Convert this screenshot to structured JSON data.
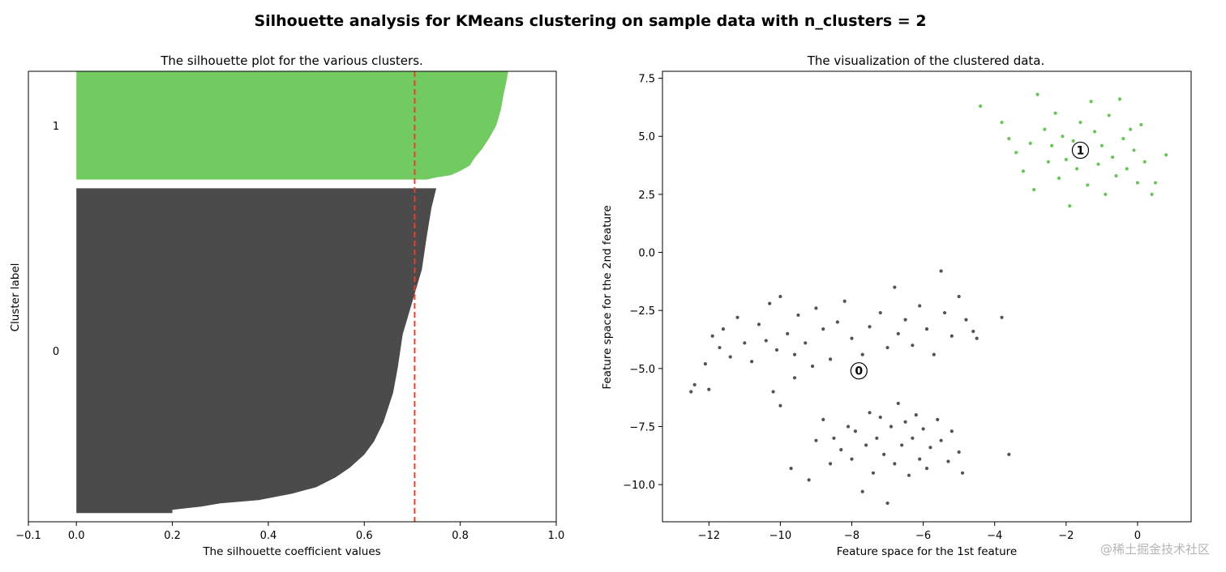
{
  "figure": {
    "suptitle": "Silhouette analysis for KMeans clustering on sample data with n_clusters = 2",
    "watermark": "@稀土掘金技术社区"
  },
  "chart_data": [
    {
      "type": "area",
      "title": "The silhouette plot for the various clusters.",
      "xlabel": "The silhouette coefficient values",
      "ylabel": "Cluster label",
      "xlim": [
        -0.1,
        1.0
      ],
      "ylim": [
        0,
        520
      ],
      "xticks": [
        "−0.1",
        "0.0",
        "0.2",
        "0.4",
        "0.6",
        "0.8",
        "1.0"
      ],
      "xtick_values": [
        -0.1,
        0.0,
        0.2,
        0.4,
        0.6,
        0.8,
        1.0
      ],
      "average_silhouette": 0.705,
      "average_line_color": "#e8412b",
      "clusters": [
        {
          "label": "0",
          "color": "#4b4b4b",
          "y_lower": 10,
          "y_upper": 385,
          "profile_top_down": [
            [
              0.0,
              0.75
            ],
            [
              0.06,
              0.74
            ],
            [
              0.15,
              0.73
            ],
            [
              0.25,
              0.72
            ],
            [
              0.35,
              0.7
            ],
            [
              0.45,
              0.68
            ],
            [
              0.55,
              0.67
            ],
            [
              0.63,
              0.66
            ],
            [
              0.72,
              0.64
            ],
            [
              0.78,
              0.62
            ],
            [
              0.82,
              0.6
            ],
            [
              0.86,
              0.57
            ],
            [
              0.89,
              0.54
            ],
            [
              0.92,
              0.5
            ],
            [
              0.94,
              0.45
            ],
            [
              0.96,
              0.38
            ],
            [
              0.97,
              0.3
            ],
            [
              0.98,
              0.26
            ],
            [
              0.99,
              0.2
            ],
            [
              1.0,
              0.2
            ]
          ]
        },
        {
          "label": "1",
          "color": "#72cb60",
          "y_lower": 395,
          "y_upper": 520,
          "profile_top_down": [
            [
              0.0,
              0.9
            ],
            [
              0.12,
              0.895
            ],
            [
              0.22,
              0.89
            ],
            [
              0.35,
              0.885
            ],
            [
              0.5,
              0.875
            ],
            [
              0.62,
              0.86
            ],
            [
              0.72,
              0.845
            ],
            [
              0.8,
              0.83
            ],
            [
              0.87,
              0.82
            ],
            [
              0.92,
              0.8
            ],
            [
              0.96,
              0.78
            ],
            [
              0.98,
              0.75
            ],
            [
              1.0,
              0.73
            ]
          ]
        }
      ]
    },
    {
      "type": "scatter",
      "title": "The visualization of the clustered data.",
      "xlabel": "Feature space for the 1st feature",
      "ylabel": "Feature space for the 2nd feature",
      "xlim": [
        -13.3,
        1.5
      ],
      "ylim": [
        -11.6,
        7.8
      ],
      "xticks": [
        "−12",
        "−10",
        "−8",
        "−6",
        "−4",
        "−2",
        "0"
      ],
      "xtick_values": [
        -12,
        -10,
        -8,
        -6,
        -4,
        -2,
        0
      ],
      "yticks": [
        "7.5",
        "5.0",
        "2.5",
        "0.0",
        "−2.5",
        "−5.0",
        "−7.5",
        "−10.0"
      ],
      "ytick_values": [
        7.5,
        5.0,
        2.5,
        0.0,
        -2.5,
        -5.0,
        -7.5,
        -10.0
      ],
      "clusters": [
        {
          "label": "0",
          "color": "#404040",
          "center": [
            -7.8,
            -5.1
          ],
          "points_sample": [
            [
              -12.5,
              -6.0
            ],
            [
              -12.4,
              -5.7
            ],
            [
              -12.1,
              -4.8
            ],
            [
              -12.0,
              -5.9
            ],
            [
              -11.9,
              -3.6
            ],
            [
              -11.7,
              -4.1
            ],
            [
              -11.6,
              -3.3
            ],
            [
              -11.4,
              -4.5
            ],
            [
              -11.2,
              -2.8
            ],
            [
              -11.0,
              -3.9
            ],
            [
              -10.8,
              -4.7
            ],
            [
              -10.6,
              -3.1
            ],
            [
              -10.4,
              -3.8
            ],
            [
              -10.3,
              -2.2
            ],
            [
              -10.1,
              -4.2
            ],
            [
              -10.0,
              -1.9
            ],
            [
              -9.8,
              -3.5
            ],
            [
              -9.6,
              -4.4
            ],
            [
              -9.5,
              -2.7
            ],
            [
              -9.3,
              -3.9
            ],
            [
              -9.1,
              -4.9
            ],
            [
              -9.0,
              -2.4
            ],
            [
              -8.8,
              -3.3
            ],
            [
              -8.6,
              -4.6
            ],
            [
              -8.4,
              -3.0
            ],
            [
              -8.2,
              -2.1
            ],
            [
              -8.0,
              -3.7
            ],
            [
              -7.7,
              -4.4
            ],
            [
              -7.5,
              -3.2
            ],
            [
              -7.2,
              -2.6
            ],
            [
              -7.0,
              -4.1
            ],
            [
              -6.8,
              -1.5
            ],
            [
              -6.7,
              -3.5
            ],
            [
              -6.5,
              -2.9
            ],
            [
              -6.3,
              -4.0
            ],
            [
              -6.1,
              -2.3
            ],
            [
              -5.9,
              -3.3
            ],
            [
              -5.7,
              -4.4
            ],
            [
              -5.5,
              -0.8
            ],
            [
              -5.4,
              -2.6
            ],
            [
              -5.2,
              -3.6
            ],
            [
              -5.0,
              -1.9
            ],
            [
              -4.8,
              -2.9
            ],
            [
              -4.6,
              -3.4
            ],
            [
              -4.5,
              -3.7
            ],
            [
              -3.8,
              -2.8
            ],
            [
              -10.2,
              -6.0
            ],
            [
              -9.6,
              -5.4
            ],
            [
              -10.0,
              -6.6
            ],
            [
              -9.7,
              -9.3
            ],
            [
              -9.2,
              -9.8
            ],
            [
              -9.0,
              -8.1
            ],
            [
              -8.8,
              -7.2
            ],
            [
              -8.6,
              -9.1
            ],
            [
              -8.5,
              -8.0
            ],
            [
              -8.3,
              -8.5
            ],
            [
              -8.1,
              -7.5
            ],
            [
              -8.0,
              -8.9
            ],
            [
              -7.9,
              -7.7
            ],
            [
              -7.7,
              -10.3
            ],
            [
              -7.6,
              -8.3
            ],
            [
              -7.5,
              -6.9
            ],
            [
              -7.4,
              -9.5
            ],
            [
              -7.3,
              -8.0
            ],
            [
              -7.2,
              -7.1
            ],
            [
              -7.1,
              -8.7
            ],
            [
              -7.0,
              -10.8
            ],
            [
              -6.9,
              -7.5
            ],
            [
              -6.8,
              -9.1
            ],
            [
              -6.7,
              -6.5
            ],
            [
              -6.6,
              -8.3
            ],
            [
              -6.5,
              -7.3
            ],
            [
              -6.4,
              -9.6
            ],
            [
              -6.3,
              -8.0
            ],
            [
              -6.2,
              -7.0
            ],
            [
              -6.1,
              -8.9
            ],
            [
              -6.0,
              -7.6
            ],
            [
              -5.9,
              -9.3
            ],
            [
              -5.8,
              -8.4
            ],
            [
              -5.6,
              -7.2
            ],
            [
              -5.5,
              -8.1
            ],
            [
              -5.3,
              -9.0
            ],
            [
              -5.2,
              -7.7
            ],
            [
              -5.0,
              -8.6
            ],
            [
              -4.9,
              -9.5
            ],
            [
              -3.6,
              -8.7
            ]
          ]
        },
        {
          "label": "1",
          "color": "#5bbd4a",
          "center": [
            -1.6,
            4.4
          ],
          "points_sample": [
            [
              -4.4,
              6.3
            ],
            [
              -3.8,
              5.6
            ],
            [
              -3.6,
              4.9
            ],
            [
              -3.4,
              4.3
            ],
            [
              -3.2,
              3.5
            ],
            [
              -3.0,
              4.7
            ],
            [
              -2.9,
              2.7
            ],
            [
              -2.8,
              6.8
            ],
            [
              -2.6,
              5.3
            ],
            [
              -2.5,
              3.9
            ],
            [
              -2.4,
              4.6
            ],
            [
              -2.3,
              6.0
            ],
            [
              -2.2,
              3.2
            ],
            [
              -2.1,
              5.0
            ],
            [
              -2.0,
              4.0
            ],
            [
              -1.9,
              2.0
            ],
            [
              -1.8,
              4.8
            ],
            [
              -1.7,
              3.6
            ],
            [
              -1.6,
              5.6
            ],
            [
              -1.5,
              4.2
            ],
            [
              -1.4,
              2.9
            ],
            [
              -1.3,
              6.5
            ],
            [
              -1.2,
              5.2
            ],
            [
              -1.1,
              3.8
            ],
            [
              -1.0,
              4.6
            ],
            [
              -0.9,
              2.5
            ],
            [
              -0.8,
              5.9
            ],
            [
              -0.7,
              4.1
            ],
            [
              -0.6,
              3.3
            ],
            [
              -0.5,
              6.6
            ],
            [
              -0.4,
              4.9
            ],
            [
              -0.3,
              3.6
            ],
            [
              -0.2,
              5.3
            ],
            [
              -0.1,
              4.4
            ],
            [
              0.0,
              3.0
            ],
            [
              0.1,
              5.5
            ],
            [
              0.2,
              3.9
            ],
            [
              0.4,
              2.5
            ],
            [
              0.5,
              3.0
            ],
            [
              0.8,
              4.2
            ]
          ]
        }
      ]
    }
  ]
}
